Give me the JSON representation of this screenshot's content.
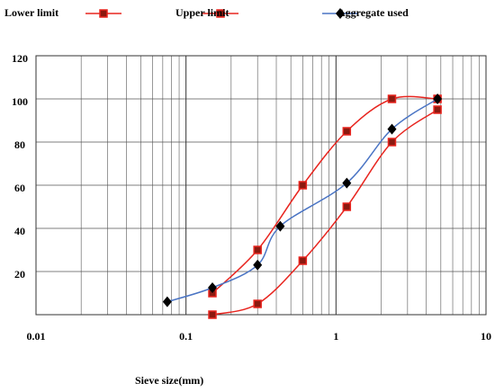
{
  "chart_data": {
    "type": "line",
    "xlabel": "Sieve size(mm)",
    "xscale": "log",
    "xlim": [
      0.01,
      10
    ],
    "xticks": [
      0.01,
      0.1,
      1,
      10
    ],
    "ylim": [
      0,
      120
    ],
    "yticks": [
      20,
      40,
      60,
      80,
      100,
      120
    ],
    "grid": true,
    "legend": "top",
    "series": [
      {
        "name": "Lower limit",
        "color": "#e8251f",
        "marker": "square",
        "x": [
          0.15,
          0.3,
          0.6,
          1.18,
          2.36,
          4.75
        ],
        "values": [
          0,
          5,
          25,
          50,
          80,
          95
        ]
      },
      {
        "name": "Upper limit",
        "color": "#e8251f",
        "marker": "square",
        "x": [
          0.15,
          0.3,
          0.6,
          1.18,
          2.36,
          4.75
        ],
        "values": [
          10,
          30,
          60,
          85,
          100,
          100
        ]
      },
      {
        "name": "Aggregate used",
        "color": "#4a74c4",
        "marker": "diamond",
        "x": [
          0.075,
          0.15,
          0.3,
          0.425,
          1.18,
          2.36,
          4.75
        ],
        "values": [
          6,
          12.5,
          23,
          41,
          61,
          86,
          100
        ]
      }
    ]
  }
}
